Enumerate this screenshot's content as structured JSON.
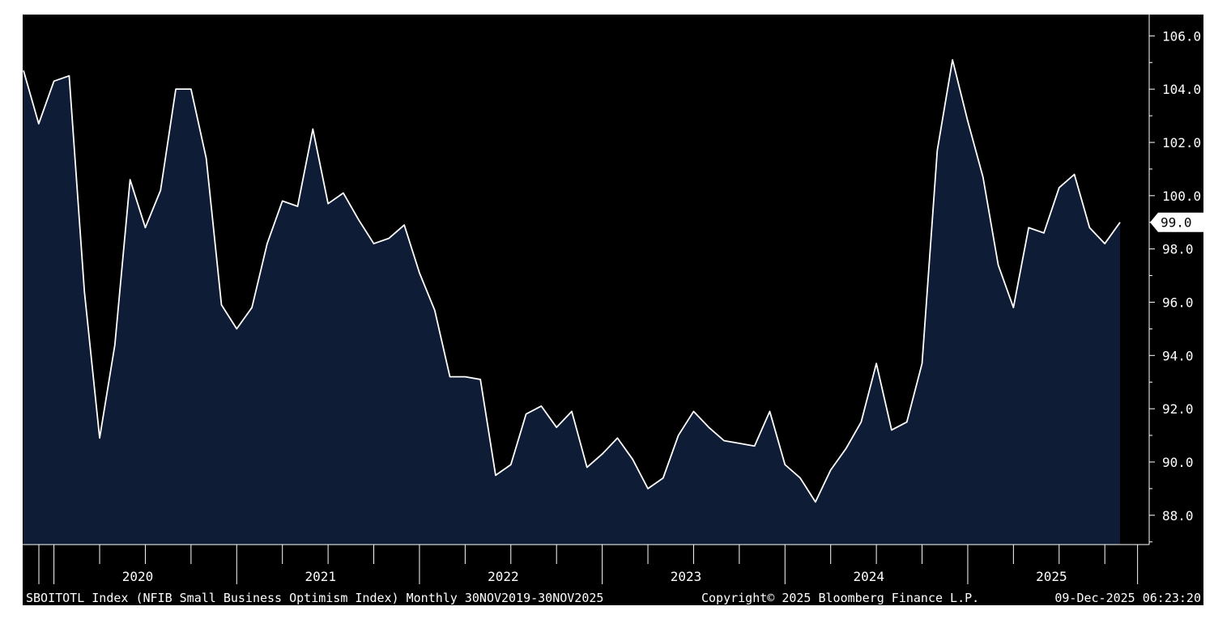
{
  "chart_data": {
    "type": "area",
    "frequency": "monthly",
    "ylim": [
      86.9,
      106.8
    ],
    "yticks": [
      "106.0",
      "104.0",
      "102.0",
      "100.0",
      "98.0",
      "96.0",
      "94.0",
      "92.0",
      "90.0",
      "88.0"
    ],
    "ytick_values": [
      106,
      104,
      102,
      100,
      98,
      96,
      94,
      92,
      90,
      88
    ],
    "year_labels": [
      "2020",
      "2021",
      "2022",
      "2023",
      "2024",
      "2025"
    ],
    "last_value_label": "99.0",
    "colors": {
      "background": "#000000",
      "area_fill": "#0e1c36",
      "line": "#ffffff",
      "axis": "#ffffff",
      "last_label_bg": "#ffffff"
    },
    "x": [
      "2019-11",
      "2019-12",
      "2020-01",
      "2020-02",
      "2020-03",
      "2020-04",
      "2020-05",
      "2020-06",
      "2020-07",
      "2020-08",
      "2020-09",
      "2020-10",
      "2020-11",
      "2020-12",
      "2021-01",
      "2021-02",
      "2021-03",
      "2021-04",
      "2021-05",
      "2021-06",
      "2021-07",
      "2021-08",
      "2021-09",
      "2021-10",
      "2021-11",
      "2021-12",
      "2022-01",
      "2022-02",
      "2022-03",
      "2022-04",
      "2022-05",
      "2022-06",
      "2022-07",
      "2022-08",
      "2022-09",
      "2022-10",
      "2022-11",
      "2022-12",
      "2023-01",
      "2023-02",
      "2023-03",
      "2023-04",
      "2023-05",
      "2023-06",
      "2023-07",
      "2023-08",
      "2023-09",
      "2023-10",
      "2023-11",
      "2023-12",
      "2024-01",
      "2024-02",
      "2024-03",
      "2024-04",
      "2024-05",
      "2024-06",
      "2024-07",
      "2024-08",
      "2024-09",
      "2024-10",
      "2024-11",
      "2024-12",
      "2025-01",
      "2025-02",
      "2025-03",
      "2025-04",
      "2025-05",
      "2025-06",
      "2025-07",
      "2025-08",
      "2025-09",
      "2025-10",
      "2025-11"
    ],
    "values": [
      104.7,
      102.7,
      104.3,
      104.5,
      96.4,
      90.9,
      94.4,
      100.6,
      98.8,
      100.2,
      104.0,
      104.0,
      101.4,
      95.9,
      95.0,
      95.8,
      98.2,
      99.8,
      99.6,
      102.5,
      99.7,
      100.1,
      99.1,
      98.2,
      98.4,
      98.9,
      97.1,
      95.7,
      93.2,
      93.2,
      93.1,
      89.5,
      89.9,
      91.8,
      92.1,
      91.3,
      91.9,
      89.8,
      90.3,
      90.9,
      90.1,
      89.0,
      89.4,
      91.0,
      91.9,
      91.3,
      90.8,
      90.7,
      90.6,
      91.9,
      89.9,
      89.4,
      88.5,
      89.7,
      90.5,
      91.5,
      93.7,
      91.2,
      91.5,
      93.7,
      101.7,
      105.1,
      102.8,
      100.7,
      97.4,
      95.8,
      98.8,
      98.6,
      100.3,
      100.8,
      98.8,
      98.2,
      99.0
    ]
  },
  "footer": {
    "left": "SBOITOTL Index (NFIB Small Business Optimism Index) Monthly 30NOV2019-30NOV2025",
    "center": "Copyright© 2025 Bloomberg Finance L.P.",
    "right": "09-Dec-2025 06:23:20"
  }
}
